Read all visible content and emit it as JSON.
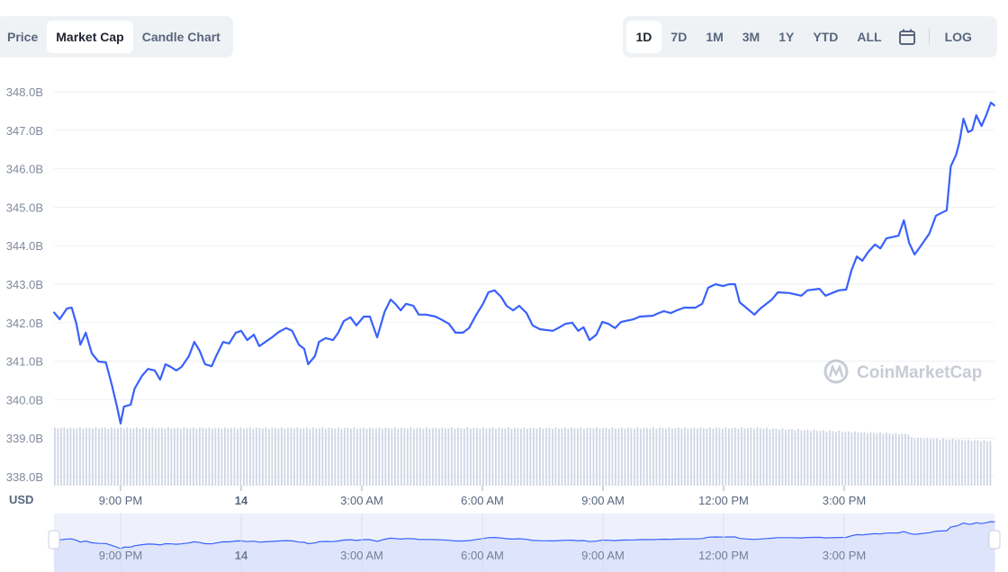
{
  "tabs": {
    "items": [
      {
        "label": "Price"
      },
      {
        "label": "Market Cap",
        "active": true
      },
      {
        "label": "Candle Chart"
      }
    ]
  },
  "ranges": {
    "items": [
      {
        "label": "1D",
        "active": true
      },
      {
        "label": "7D"
      },
      {
        "label": "1M"
      },
      {
        "label": "3M"
      },
      {
        "label": "1Y"
      },
      {
        "label": "YTD"
      },
      {
        "label": "ALL"
      }
    ],
    "calendar_icon": "calendar-icon",
    "log_label": "LOG"
  },
  "currency_label": "USD",
  "watermark": "CoinMarketCap",
  "colors": {
    "line": "#3861fb",
    "volume": "#cfd6e4",
    "navigator_bg": "#e8edfc",
    "text": "#58667e"
  },
  "chart_data": {
    "type": "line",
    "ylabel": "",
    "xlabel": "",
    "ylim": [
      338.0,
      348.0
    ],
    "y_ticks": [
      "348.0B",
      "347.0B",
      "346.0B",
      "345.0B",
      "344.0B",
      "343.0B",
      "342.0B",
      "341.0B",
      "340.0B",
      "339.0B",
      "338.0B"
    ],
    "x_ticks": [
      {
        "label": "9:00 PM",
        "time": "21:00"
      },
      {
        "label": "14",
        "time": "00:00",
        "bold": true
      },
      {
        "label": "3:00 AM",
        "time": "03:00"
      },
      {
        "label": "6:00 AM",
        "time": "06:00"
      },
      {
        "label": "9:00 AM",
        "time": "09:00"
      },
      {
        "label": "12:00 PM",
        "time": "12:00"
      },
      {
        "label": "3:00 PM",
        "time": "15:00"
      }
    ],
    "grid": true,
    "unit": "B USD",
    "series": [
      {
        "values": [
          [
            "19:20",
            342.28
          ],
          [
            "19:29",
            342.09
          ],
          [
            "19:40",
            342.37
          ],
          [
            "19:47",
            342.39
          ],
          [
            "19:54",
            341.97
          ],
          [
            "20:00",
            341.43
          ],
          [
            "20:08",
            341.74
          ],
          [
            "20:17",
            341.2
          ],
          [
            "20:27",
            340.99
          ],
          [
            "20:38",
            340.97
          ],
          [
            "20:47",
            340.38
          ],
          [
            "20:54",
            339.87
          ],
          [
            "21:00",
            339.38
          ],
          [
            "21:05",
            339.82
          ],
          [
            "21:15",
            339.87
          ],
          [
            "21:21",
            340.29
          ],
          [
            "21:32",
            340.62
          ],
          [
            "21:41",
            340.8
          ],
          [
            "21:51",
            340.76
          ],
          [
            "21:59",
            340.52
          ],
          [
            "22:07",
            340.92
          ],
          [
            "22:15",
            340.85
          ],
          [
            "22:23",
            340.76
          ],
          [
            "22:31",
            340.85
          ],
          [
            "22:42",
            341.13
          ],
          [
            "22:50",
            341.5
          ],
          [
            "22:58",
            341.27
          ],
          [
            "23:06",
            340.92
          ],
          [
            "23:16",
            340.87
          ],
          [
            "23:22",
            341.11
          ],
          [
            "23:33",
            341.5
          ],
          [
            "23:42",
            341.46
          ],
          [
            "23:52",
            341.74
          ],
          [
            "00:00",
            341.79
          ],
          [
            "00:09",
            341.55
          ],
          [
            "00:19",
            341.69
          ],
          [
            "00:27",
            341.39
          ],
          [
            "00:36",
            341.5
          ],
          [
            "00:46",
            341.62
          ],
          [
            "00:56",
            341.76
          ],
          [
            "01:07",
            341.86
          ],
          [
            "01:16",
            341.79
          ],
          [
            "01:26",
            341.43
          ],
          [
            "01:34",
            341.32
          ],
          [
            "01:40",
            340.92
          ],
          [
            "01:50",
            341.13
          ],
          [
            "01:56",
            341.5
          ],
          [
            "02:06",
            341.6
          ],
          [
            "02:17",
            341.55
          ],
          [
            "02:25",
            341.74
          ],
          [
            "02:33",
            342.04
          ],
          [
            "02:43",
            342.14
          ],
          [
            "02:52",
            341.93
          ],
          [
            "03:03",
            342.16
          ],
          [
            "03:12",
            342.16
          ],
          [
            "03:23",
            341.62
          ],
          [
            "03:34",
            342.28
          ],
          [
            "03:43",
            342.6
          ],
          [
            "03:50",
            342.49
          ],
          [
            "03:58",
            342.32
          ],
          [
            "04:06",
            342.49
          ],
          [
            "04:17",
            342.44
          ],
          [
            "04:25",
            342.21
          ],
          [
            "04:36",
            342.21
          ],
          [
            "04:50",
            342.16
          ],
          [
            "05:00",
            342.07
          ],
          [
            "05:10",
            341.97
          ],
          [
            "05:20",
            341.74
          ],
          [
            "05:31",
            341.74
          ],
          [
            "05:40",
            341.86
          ],
          [
            "05:51",
            342.21
          ],
          [
            "06:01",
            342.49
          ],
          [
            "06:09",
            342.79
          ],
          [
            "06:18",
            342.84
          ],
          [
            "06:28",
            342.67
          ],
          [
            "06:36",
            342.44
          ],
          [
            "06:46",
            342.32
          ],
          [
            "06:55",
            342.44
          ],
          [
            "07:06",
            342.25
          ],
          [
            "07:15",
            341.93
          ],
          [
            "07:26",
            341.83
          ],
          [
            "07:45",
            341.79
          ],
          [
            "07:53",
            341.86
          ],
          [
            "08:04",
            341.97
          ],
          [
            "08:14",
            342.0
          ],
          [
            "08:23",
            341.79
          ],
          [
            "08:31",
            341.88
          ],
          [
            "08:40",
            341.55
          ],
          [
            "08:50",
            341.69
          ],
          [
            "08:59",
            342.02
          ],
          [
            "09:08",
            341.97
          ],
          [
            "09:18",
            341.86
          ],
          [
            "09:27",
            342.02
          ],
          [
            "09:46",
            342.09
          ],
          [
            "09:55",
            342.16
          ],
          [
            "10:14",
            342.18
          ],
          [
            "10:23",
            342.25
          ],
          [
            "10:31",
            342.3
          ],
          [
            "10:41",
            342.25
          ],
          [
            "10:50",
            342.32
          ],
          [
            "11:01",
            342.39
          ],
          [
            "11:18",
            342.39
          ],
          [
            "11:28",
            342.49
          ],
          [
            "11:37",
            342.91
          ],
          [
            "11:48",
            343.0
          ],
          [
            "11:59",
            342.95
          ],
          [
            "12:08",
            343.0
          ],
          [
            "12:17",
            343.0
          ],
          [
            "12:24",
            342.53
          ],
          [
            "12:35",
            342.37
          ],
          [
            "12:46",
            342.21
          ],
          [
            "12:55",
            342.37
          ],
          [
            "13:04",
            342.49
          ],
          [
            "13:12",
            342.6
          ],
          [
            "13:21",
            342.79
          ],
          [
            "13:38",
            342.77
          ],
          [
            "13:56",
            342.7
          ],
          [
            "14:05",
            342.84
          ],
          [
            "14:23",
            342.88
          ],
          [
            "14:32",
            342.7
          ],
          [
            "14:52",
            342.84
          ],
          [
            "15:03",
            342.86
          ],
          [
            "15:11",
            343.37
          ],
          [
            "15:19",
            343.72
          ],
          [
            "15:27",
            343.61
          ],
          [
            "15:36",
            343.84
          ],
          [
            "15:46",
            344.03
          ],
          [
            "15:54",
            343.93
          ],
          [
            "16:03",
            344.19
          ],
          [
            "16:21",
            344.26
          ],
          [
            "16:29",
            344.66
          ],
          [
            "16:37",
            344.07
          ],
          [
            "16:45",
            343.77
          ],
          [
            "16:53",
            343.96
          ],
          [
            "17:07",
            344.31
          ],
          [
            "17:17",
            344.78
          ],
          [
            "17:33",
            344.92
          ],
          [
            "17:39",
            346.06
          ],
          [
            "17:47",
            346.36
          ],
          [
            "17:52",
            346.69
          ],
          [
            "17:58",
            347.3
          ],
          [
            "18:05",
            346.95
          ],
          [
            "18:11",
            347.0
          ],
          [
            "18:17",
            347.39
          ],
          [
            "18:25",
            347.11
          ],
          [
            "18:32",
            347.39
          ],
          [
            "18:39",
            347.72
          ],
          [
            "18:45",
            347.63
          ]
        ]
      }
    ]
  }
}
